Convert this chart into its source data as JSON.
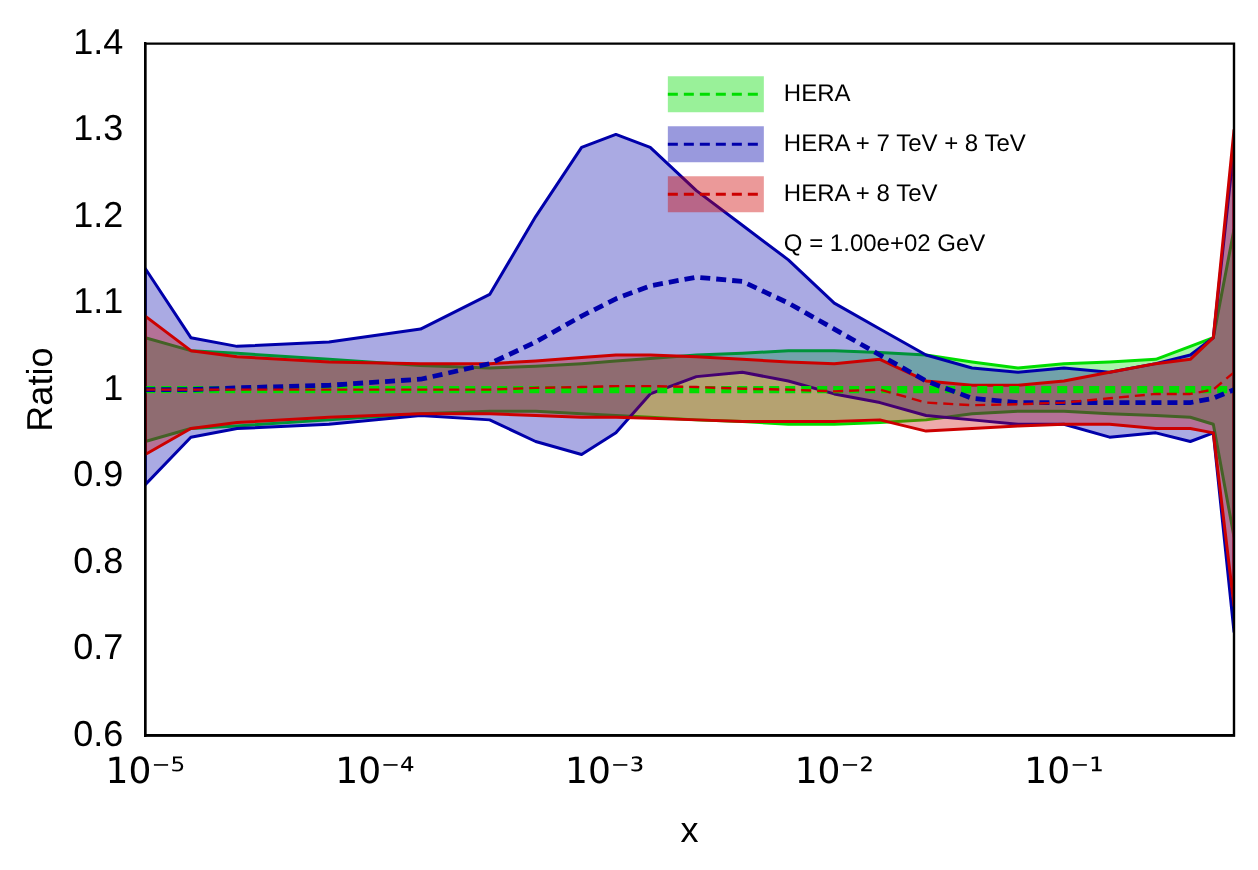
{
  "chart_data": {
    "type": "line",
    "xlabel": "x",
    "ylabel": "Ratio",
    "x": [
      1e-05,
      1.58e-05,
      2.51e-05,
      6.31e-05,
      0.000158,
      0.000316,
      0.000501,
      0.000794,
      0.00112,
      0.00158,
      0.00251,
      0.00398,
      0.00631,
      0.01,
      0.0158,
      0.0251,
      0.0398,
      0.0631,
      0.1,
      0.158,
      0.251,
      0.355,
      0.447,
      0.55
    ],
    "series": [
      {
        "name": "HERA",
        "color": "#00dd00",
        "line_style": "dashed",
        "values": [
          1,
          1,
          1,
          1,
          1,
          1,
          1,
          1,
          1,
          1,
          1,
          1,
          1,
          1,
          1,
          1,
          1,
          1,
          1,
          1,
          1,
          1,
          1,
          1
        ],
        "lower": [
          0.94,
          0.955,
          0.958,
          0.965,
          0.972,
          0.975,
          0.975,
          0.972,
          0.97,
          0.968,
          0.965,
          0.963,
          0.96,
          0.96,
          0.962,
          0.965,
          0.972,
          0.975,
          0.975,
          0.972,
          0.97,
          0.968,
          0.96,
          0.83
        ],
        "upper": [
          1.06,
          1.045,
          1.042,
          1.035,
          1.028,
          1.025,
          1.027,
          1.03,
          1.033,
          1.036,
          1.04,
          1.042,
          1.045,
          1.045,
          1.043,
          1.04,
          1.032,
          1.025,
          1.03,
          1.032,
          1.035,
          1.05,
          1.06,
          1.185
        ]
      },
      {
        "name": "HERA + 7 TeV + 8 TeV",
        "color": "#0000aa",
        "line_style": "dashed",
        "values": [
          1,
          1,
          1.002,
          1.005,
          1.012,
          1.03,
          1.055,
          1.085,
          1.105,
          1.12,
          1.13,
          1.125,
          1.1,
          1.07,
          1.04,
          1.01,
          0.99,
          0.985,
          0.985,
          0.985,
          0.985,
          0.985,
          0.99,
          1
        ],
        "lower": [
          0.89,
          0.945,
          0.955,
          0.96,
          0.97,
          0.965,
          0.94,
          0.925,
          0.95,
          0.995,
          1.015,
          1.02,
          1.01,
          0.995,
          0.985,
          0.97,
          0.965,
          0.96,
          0.96,
          0.945,
          0.95,
          0.94,
          0.95,
          0.72
        ],
        "upper": [
          1.14,
          1.06,
          1.05,
          1.055,
          1.07,
          1.11,
          1.2,
          1.28,
          1.295,
          1.28,
          1.23,
          1.19,
          1.15,
          1.1,
          1.07,
          1.04,
          1.025,
          1.02,
          1.025,
          1.02,
          1.03,
          1.04,
          1.06,
          1.28
        ]
      },
      {
        "name": "HERA + 8 TeV",
        "color": "#cc0000",
        "line_style": "dashed",
        "values": [
          1,
          1,
          1,
          1,
          1,
          1,
          1.002,
          1.003,
          1.004,
          1.004,
          1.003,
          1.001,
          1,
          0.998,
          1,
          0.985,
          0.982,
          0.983,
          0.985,
          0.99,
          0.995,
          0.995,
          1,
          1.02
        ],
        "lower": [
          0.925,
          0.955,
          0.962,
          0.968,
          0.972,
          0.972,
          0.97,
          0.968,
          0.968,
          0.967,
          0.965,
          0.963,
          0.963,
          0.963,
          0.965,
          0.952,
          0.955,
          0.958,
          0.96,
          0.96,
          0.955,
          0.955,
          0.95,
          0.75
        ],
        "upper": [
          1.085,
          1.045,
          1.038,
          1.032,
          1.03,
          1.03,
          1.033,
          1.037,
          1.04,
          1.04,
          1.038,
          1.035,
          1.032,
          1.03,
          1.035,
          1.01,
          1.005,
          1.005,
          1.01,
          1.02,
          1.03,
          1.035,
          1.06,
          1.3
        ]
      }
    ],
    "log": "x",
    "xlim": [
      1e-05,
      0.55
    ],
    "xticks": [
      {
        "value": 1e-05,
        "label": "10⁻⁵"
      },
      {
        "value": 0.0001,
        "label": "10⁻⁴"
      },
      {
        "value": 0.001,
        "label": "10⁻³"
      },
      {
        "value": 0.01,
        "label": "10⁻²"
      },
      {
        "value": 0.1,
        "label": "10⁻¹"
      }
    ],
    "ylim": [
      0.6,
      1.4
    ],
    "yticks": [
      0.6,
      0.7,
      0.8,
      0.9,
      1,
      1.1,
      1.2,
      1.3,
      1.4
    ],
    "grid": false,
    "legend": "top right",
    "marker": "none",
    "annotations": [
      "Q = 1.00e+02 GeV"
    ]
  }
}
